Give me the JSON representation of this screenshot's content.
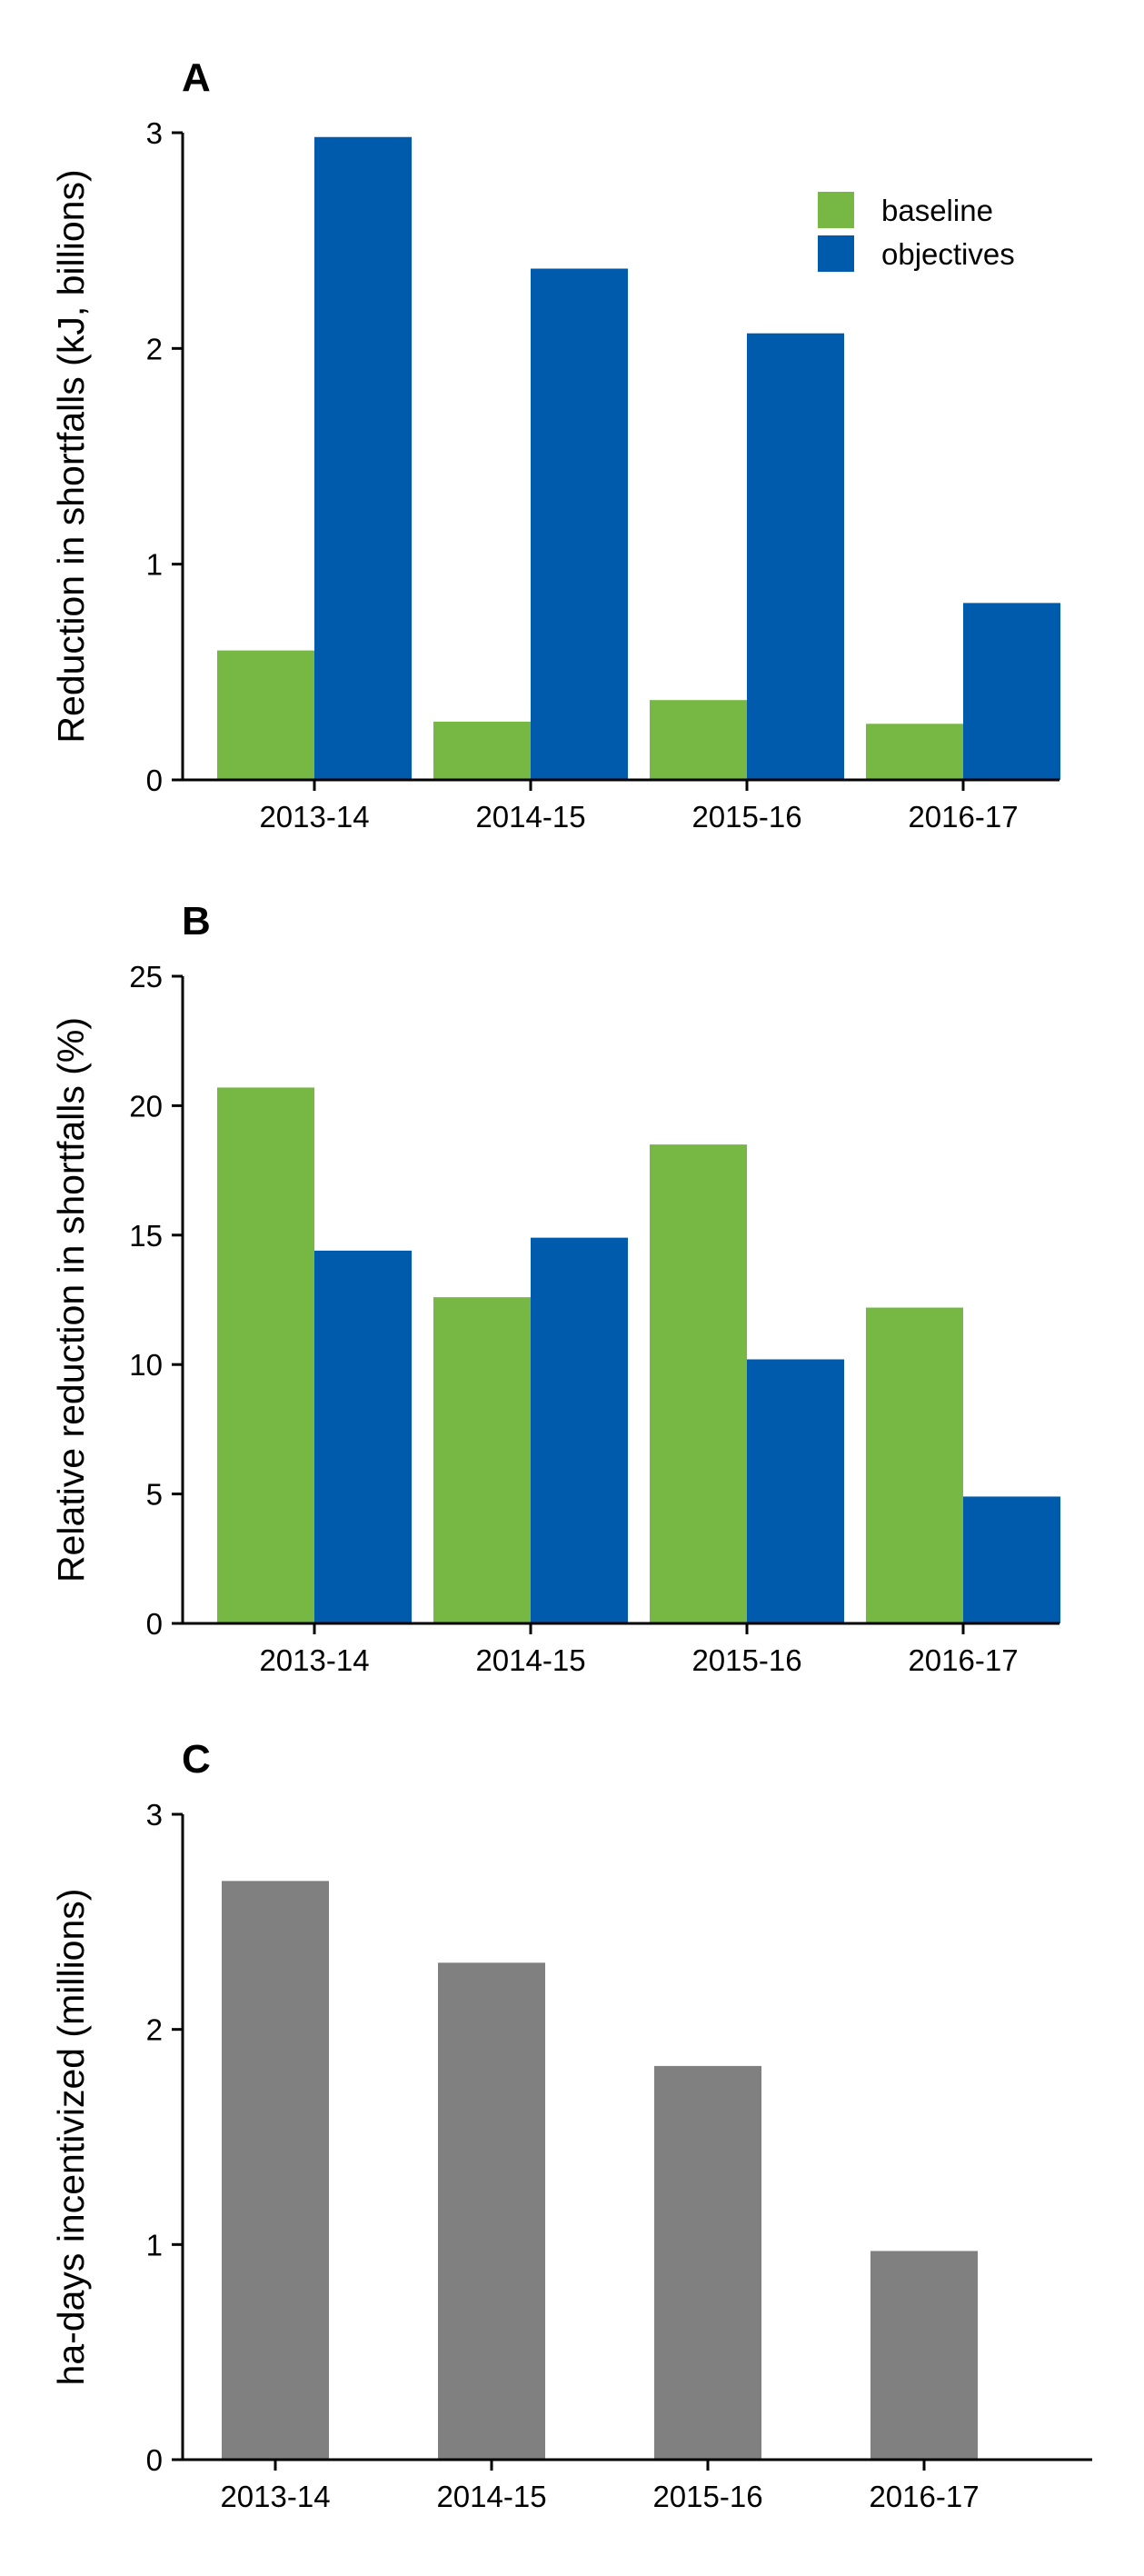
{
  "colors": {
    "baseline": "#76b843",
    "objectives": "#005bac",
    "single": "#808080",
    "axis": "#000000"
  },
  "legend": {
    "placement": "top-right",
    "items": [
      {
        "label": "baseline",
        "color": "#76b843"
      },
      {
        "label": "objectives",
        "color": "#005bac"
      }
    ]
  },
  "chart_data": [
    {
      "panel": "A",
      "type": "bar",
      "categories": [
        "2013-14",
        "2014-15",
        "2015-16",
        "2016-17"
      ],
      "series": [
        {
          "name": "baseline",
          "values": [
            0.6,
            0.27,
            0.37,
            0.26
          ]
        },
        {
          "name": "objectives",
          "values": [
            2.98,
            2.37,
            2.07,
            0.82
          ]
        }
      ],
      "ylabel": "Reduction in shortfalls (kJ, billions)",
      "ylim": [
        0,
        3
      ],
      "yticks": [
        0,
        1,
        2,
        3
      ],
      "grid": false
    },
    {
      "panel": "B",
      "type": "bar",
      "categories": [
        "2013-14",
        "2014-15",
        "2015-16",
        "2016-17"
      ],
      "series": [
        {
          "name": "baseline",
          "values": [
            20.7,
            12.6,
            18.5,
            12.2
          ]
        },
        {
          "name": "objectives",
          "values": [
            14.4,
            14.9,
            10.2,
            4.9
          ]
        }
      ],
      "ylabel": "Relative reduction in shortfalls (%)",
      "ylim": [
        0,
        25
      ],
      "yticks": [
        0,
        5,
        10,
        15,
        20,
        25
      ],
      "grid": false
    },
    {
      "panel": "C",
      "type": "bar",
      "categories": [
        "2013-14",
        "2014-15",
        "2015-16",
        "2016-17"
      ],
      "values": [
        2.69,
        2.31,
        1.83,
        0.97
      ],
      "ylabel": "ha-days incentivized (millions)",
      "ylim": [
        0,
        3
      ],
      "yticks": [
        0,
        1,
        2,
        3
      ],
      "grid": false
    }
  ]
}
